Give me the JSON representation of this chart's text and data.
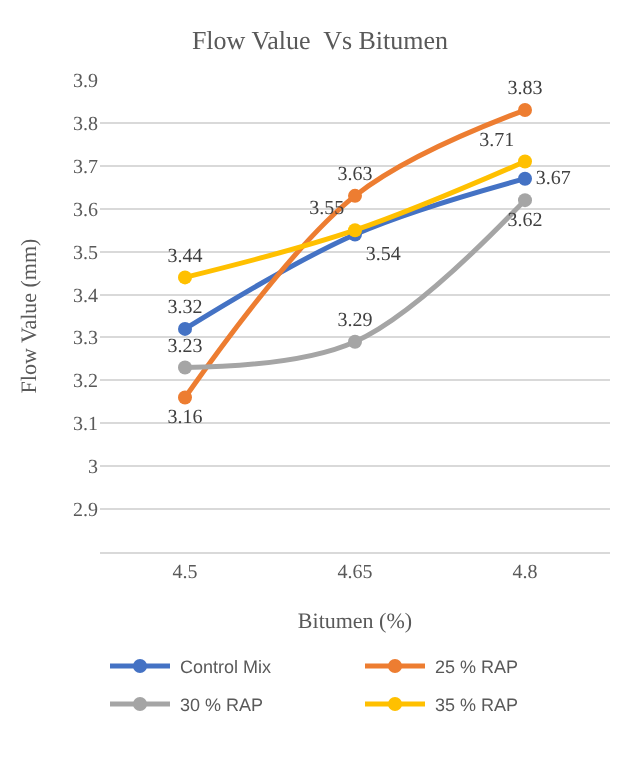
{
  "chart_data": {
    "type": "line",
    "title": "Flow Value  Vs Bitumen",
    "xlabel": "Bitumen (%)",
    "ylabel": "Flow Value (mm)",
    "categories": [
      "4.5",
      "4.65",
      "4.8"
    ],
    "series": [
      {
        "name": "Control Mix",
        "color": "#4472c4",
        "values": [
          3.32,
          3.54,
          3.67
        ]
      },
      {
        "name": "25 % RAP",
        "color": "#ed7d31",
        "values": [
          3.16,
          3.63,
          3.83
        ]
      },
      {
        "name": "30 % RAP",
        "color": "#a5a5a5",
        "values": [
          3.23,
          3.29,
          3.62
        ]
      },
      {
        "name": "35 % RAP",
        "color": "#ffc000",
        "values": [
          3.44,
          3.55,
          3.71
        ]
      }
    ],
    "ylim": [
      2.8,
      3.9
    ],
    "yticks": [
      2.9,
      3,
      3.1,
      3.2,
      3.3,
      3.4,
      3.5,
      3.6,
      3.7,
      3.8,
      3.9
    ],
    "grid": "y",
    "legend": "bottom",
    "marker": "circle",
    "line_style": "solid",
    "data_labels": true
  }
}
